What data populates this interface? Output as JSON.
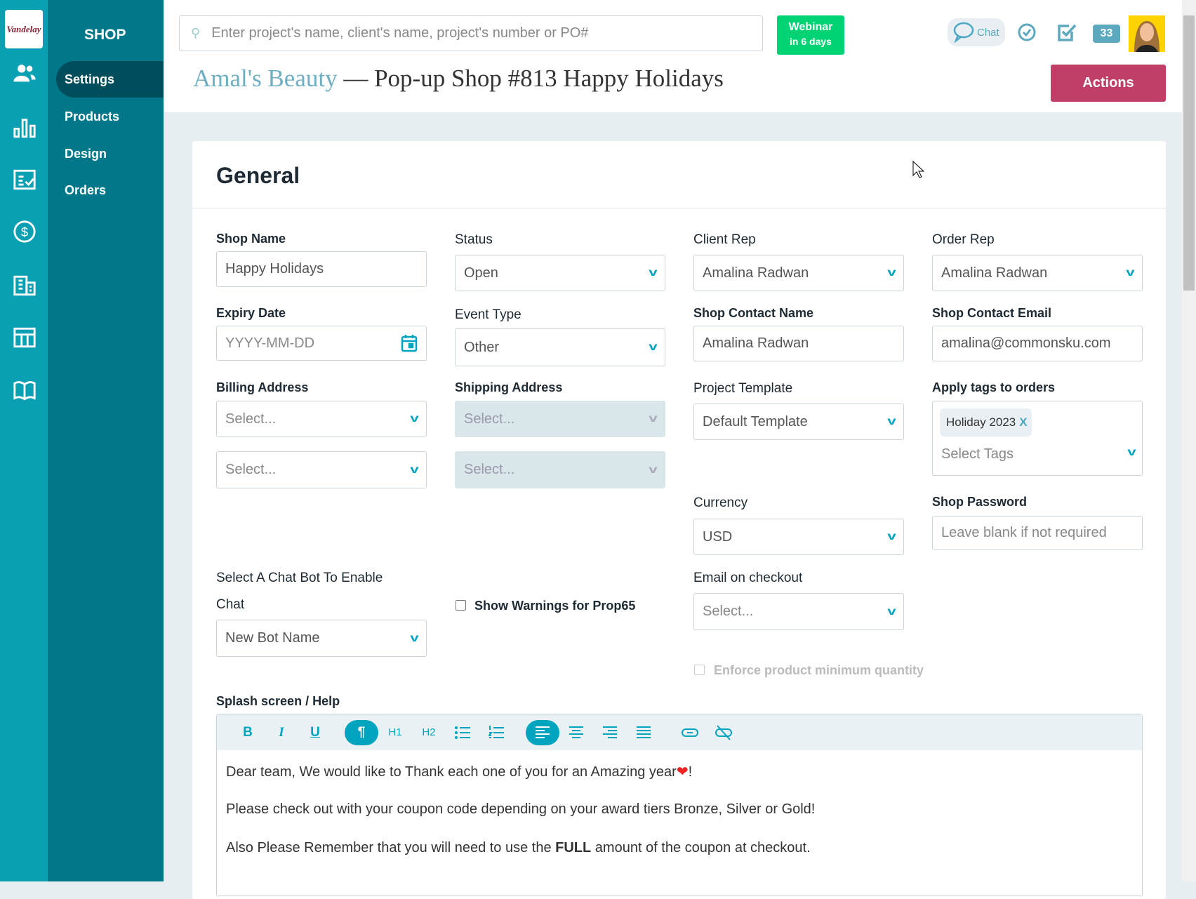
{
  "brand": {
    "logo_text": "Vandelay",
    "section": "SHOP"
  },
  "nav": {
    "items": [
      {
        "label": "Settings",
        "active": true
      },
      {
        "label": "Products"
      },
      {
        "label": "Design"
      },
      {
        "label": "Orders"
      }
    ]
  },
  "rail_icons": [
    "users-icon",
    "bar-chart-icon",
    "checklist-icon",
    "dollar-icon",
    "building-icon",
    "table-icon",
    "book-icon",
    "bot-icon"
  ],
  "header": {
    "search_placeholder": "Enter project's name, client's name, project's number or PO#",
    "webinar_title": "Webinar",
    "webinar_sub": "in 6 days",
    "chat_label": "Chat",
    "badge_count": "33"
  },
  "title": {
    "client": "Amal's Beauty",
    "separator": " — ",
    "project": "Pop-up Shop #813 Happy Holidays"
  },
  "actions_label": "Actions",
  "card_title": "General",
  "form": {
    "shop_name": {
      "label": "Shop Name",
      "value": "Happy Holidays"
    },
    "status": {
      "label": "Status",
      "value": "Open"
    },
    "client_rep": {
      "label": "Client Rep",
      "value": "Amalina Radwan"
    },
    "order_rep": {
      "label": "Order Rep",
      "value": "Amalina Radwan"
    },
    "expiry": {
      "label": "Expiry Date",
      "placeholder": "YYYY-MM-DD"
    },
    "event_type": {
      "label": "Event Type",
      "value": "Other"
    },
    "contact_name": {
      "label": "Shop Contact Name",
      "value": "Amalina Radwan"
    },
    "contact_email": {
      "label": "Shop Contact Email",
      "value": "amalina@commonsku.com"
    },
    "billing": {
      "label": "Billing Address",
      "placeholder1": "Select...",
      "placeholder2": "Select..."
    },
    "shipping": {
      "label": "Shipping Address",
      "placeholder1": "Select...",
      "placeholder2": "Select..."
    },
    "template": {
      "label": "Project Template",
      "value": "Default Template"
    },
    "tags": {
      "label": "Apply tags to orders",
      "tag": "Holiday 2023",
      "remove": "X",
      "placeholder": "Select Tags"
    },
    "currency": {
      "label": "Currency",
      "value": "USD"
    },
    "password": {
      "label": "Shop Password",
      "placeholder": "Leave blank if not required"
    },
    "chatbot": {
      "label1": "Select A Chat Bot To Enable",
      "label2": "Chat",
      "value": "New Bot Name"
    },
    "prop65": {
      "label": "Show Warnings for Prop65",
      "checked": false
    },
    "email_checkout": {
      "label": "Email on checkout",
      "placeholder": "Select..."
    },
    "enforce": {
      "label": "Enforce product minimum quantity",
      "checked": false,
      "disabled": true
    }
  },
  "editor": {
    "label": "Splash screen / Help",
    "toolbar": [
      "B",
      "I",
      "U",
      "¶",
      "H1",
      "H2",
      "bullets",
      "numbers",
      "align-left",
      "align-center",
      "align-right",
      "justify",
      "link",
      "unlink"
    ],
    "line1": "Dear team, We would like to Thank each one of you for an Amazing year",
    "line1_end": "!",
    "line2": "Please check out with your coupon code depending on your award tiers Bronze, Silver or Gold!",
    "line3_a": "Also Please Remember that you will need to use the ",
    "line3_bold": "FULL",
    "line3_b": " amount of the coupon at checkout."
  },
  "colors": {
    "rail": "#0aa0b4",
    "nav": "#00788a",
    "nav_active": "#004d5b",
    "accent": "#00a4bf",
    "actions": "#bf3f67",
    "webinar": "#00d374"
  }
}
